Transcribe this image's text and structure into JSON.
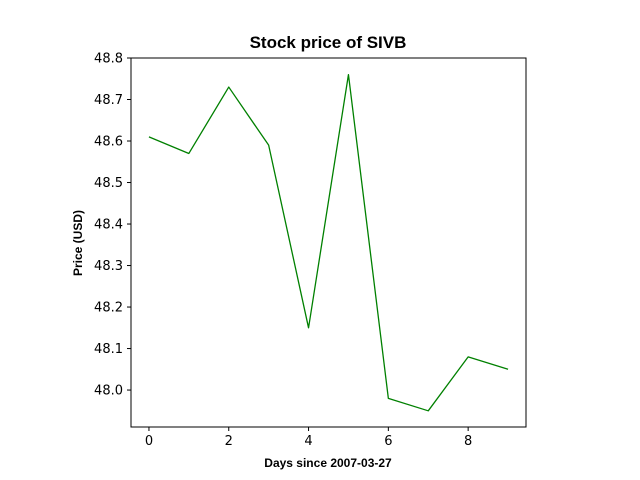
{
  "chart_data": {
    "type": "line",
    "title": "Stock price of SIVB",
    "xlabel": "Days since 2007-03-27",
    "ylabel": "Price (USD)",
    "x": [
      0,
      1,
      2,
      3,
      4,
      5,
      6,
      7,
      8,
      9
    ],
    "series": [
      {
        "values": [
          48.61,
          48.57,
          48.73,
          48.59,
          48.15,
          48.76,
          47.98,
          47.95,
          48.08,
          48.05
        ],
        "color": "#008000"
      }
    ],
    "xlim": [
      -0.45,
      9.45
    ],
    "ylim": [
      47.911,
      48.8
    ],
    "xticks": [
      0,
      2,
      4,
      6,
      8
    ],
    "xtick_labels": [
      "0",
      "2",
      "4",
      "6",
      "8"
    ],
    "yticks": [
      48.0,
      48.1,
      48.2,
      48.3,
      48.4,
      48.5,
      48.6,
      48.7,
      48.8
    ],
    "ytick_labels": [
      "48.0",
      "48.1",
      "48.2",
      "48.3",
      "48.4",
      "48.5",
      "48.6",
      "48.7",
      "48.8"
    ],
    "grid": false,
    "legend": false
  }
}
